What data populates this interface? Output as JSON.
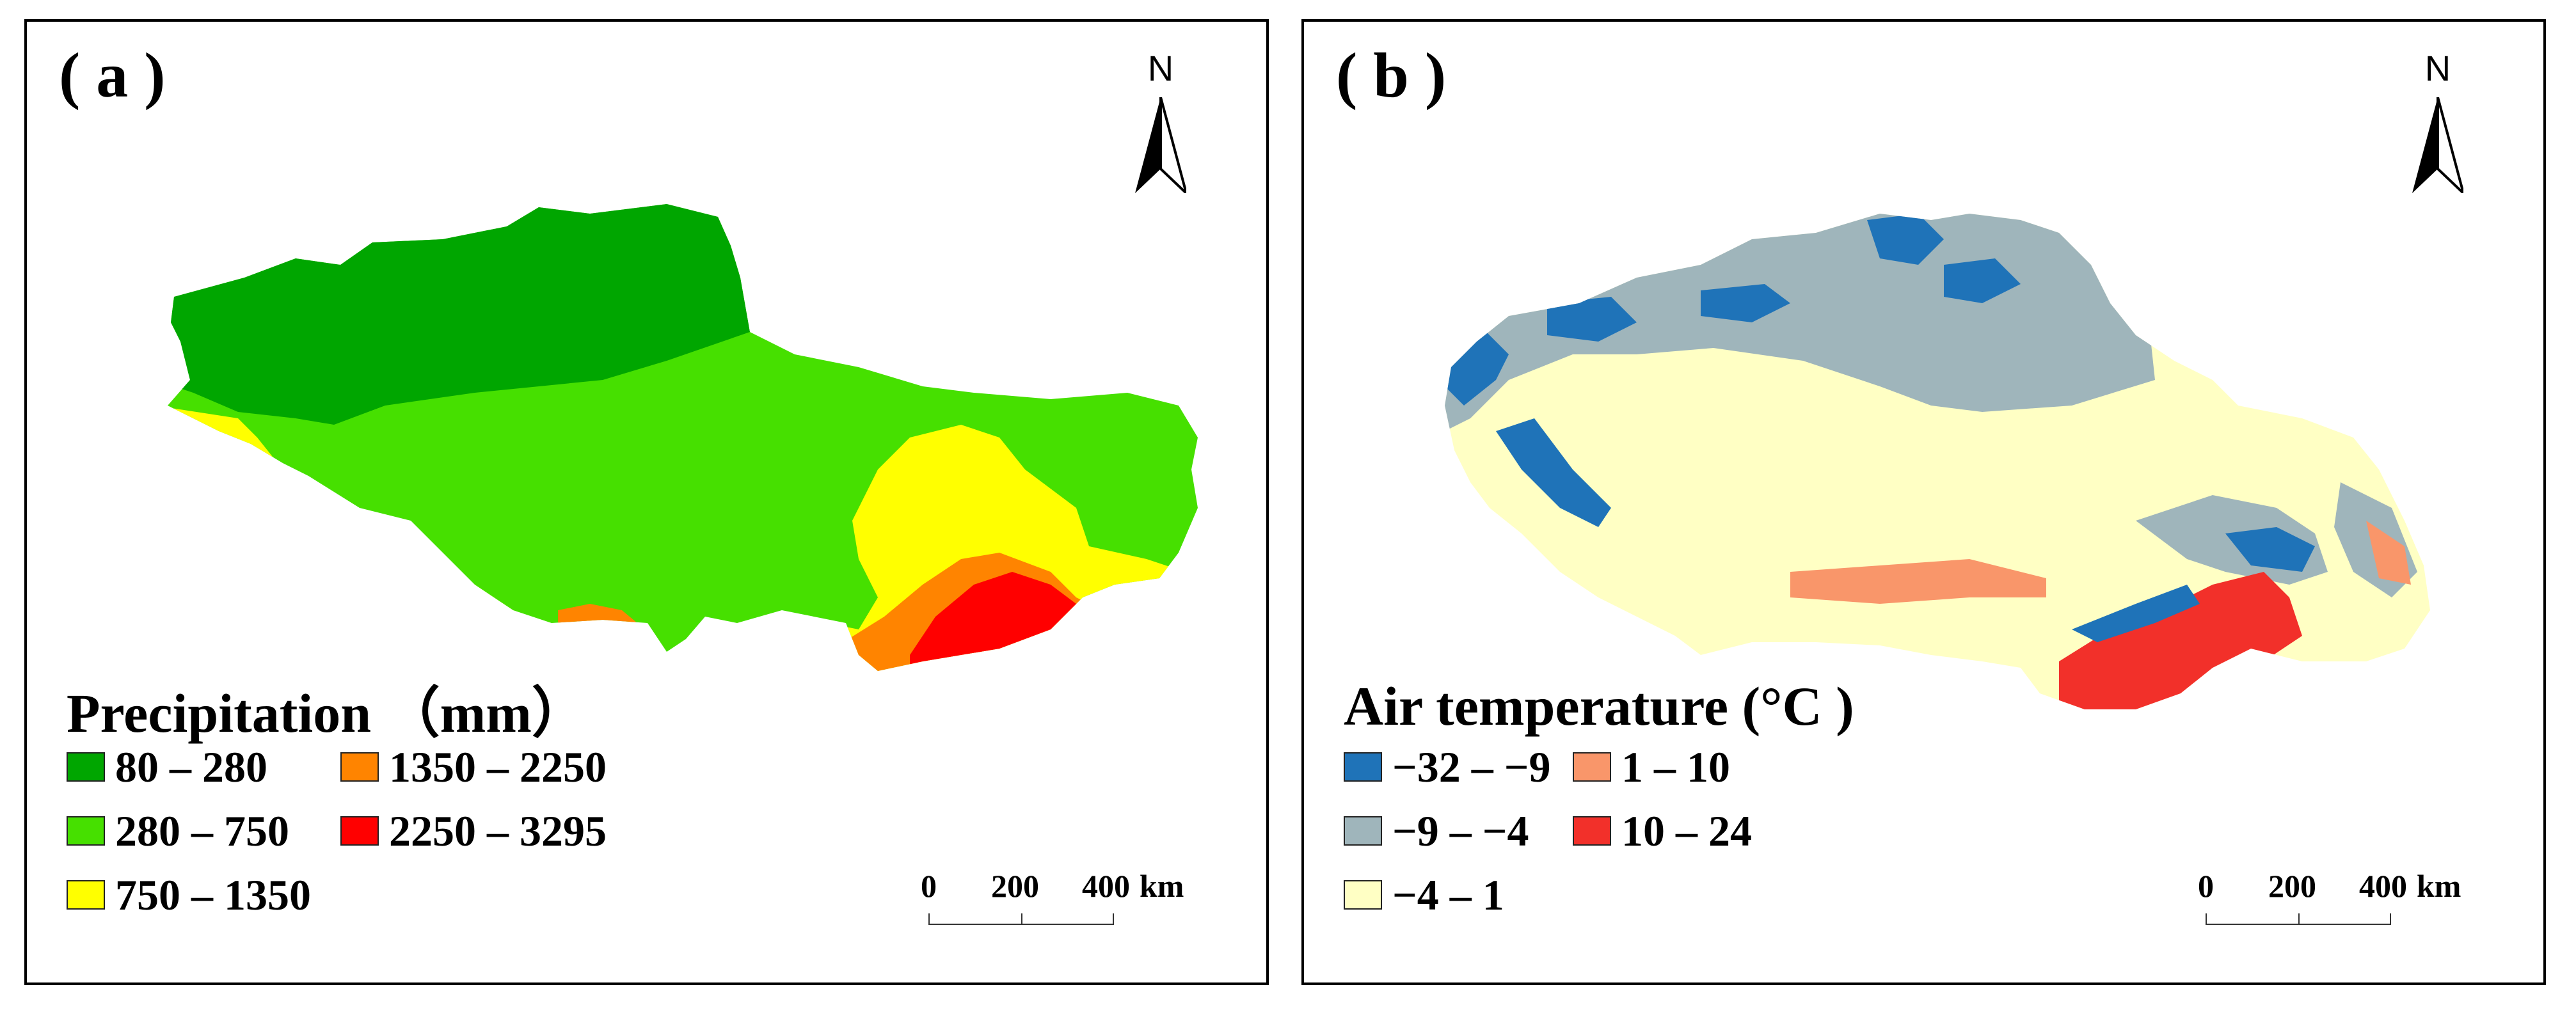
{
  "panels": [
    {
      "label": "( a )",
      "north": "N",
      "legend": {
        "title": "Precipitation （mm）",
        "items": [
          {
            "label": "80 – 280",
            "color": "#00a600"
          },
          {
            "label": "280 – 750",
            "color": "#46e000"
          },
          {
            "label": "750 – 1350",
            "color": "#ffff00"
          },
          {
            "label": "1350 – 2250",
            "color": "#ff8400"
          },
          {
            "label": "2250 – 3295",
            "color": "#ff0000"
          }
        ]
      },
      "scale": {
        "ticks": [
          "0",
          "200",
          "400"
        ],
        "unit": "km"
      }
    },
    {
      "label": "( b )",
      "north": "N",
      "legend": {
        "title": "Air temperature (°C )",
        "items": [
          {
            "label": "−32 – −9",
            "color": "#1f73b8"
          },
          {
            "label": "−9 – −4",
            "color": "#9fb5bb"
          },
          {
            "label": "−4 – 1",
            "color": "#ffffc4"
          },
          {
            "label": "1 – 10",
            "color": "#f9966a"
          },
          {
            "label": "10 – 24",
            "color": "#f2302a"
          }
        ]
      },
      "scale": {
        "ticks": [
          "0",
          "200",
          "400"
        ],
        "unit": "km"
      }
    }
  ]
}
